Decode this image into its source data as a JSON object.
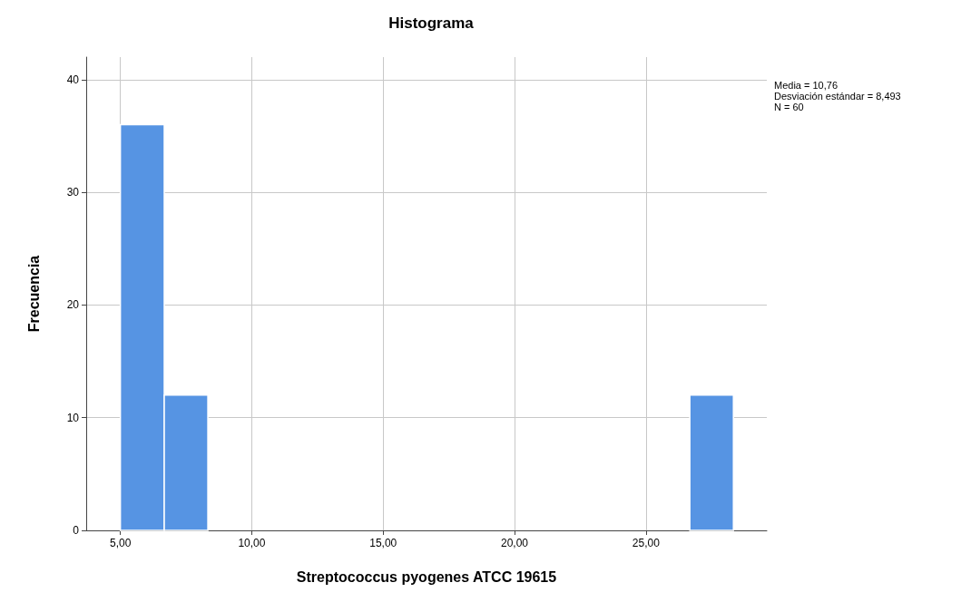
{
  "chart_data": {
    "type": "histogram",
    "title": "Histograma",
    "xlabel": "Streptococcus pyogenes ATCC 19615",
    "ylabel": "Frecuencia",
    "bins": [
      5,
      6.67,
      8.33,
      10,
      11.67,
      13.33,
      15,
      16.67,
      18.33,
      20,
      21.67,
      23.33,
      25,
      26.67,
      28.33
    ],
    "values": [
      36,
      12,
      0,
      0,
      0,
      0,
      0,
      0,
      0,
      0,
      0,
      0,
      0,
      12
    ],
    "color": "#5694e3",
    "xlim": [
      3.7,
      29.6
    ],
    "xticks": [
      {
        "value": 5,
        "label": "5,00"
      },
      {
        "value": 10,
        "label": "10,00"
      },
      {
        "value": 15,
        "label": "15,00"
      },
      {
        "value": 20,
        "label": "20,00"
      },
      {
        "value": 25,
        "label": "25,00"
      }
    ],
    "ylim": [
      0,
      42
    ],
    "yticks": [
      0,
      10,
      20,
      30,
      40
    ],
    "grid": true,
    "annotations": [
      "Media = 10,76",
      "Desviación estándar = 8,493",
      "N = 60"
    ]
  }
}
